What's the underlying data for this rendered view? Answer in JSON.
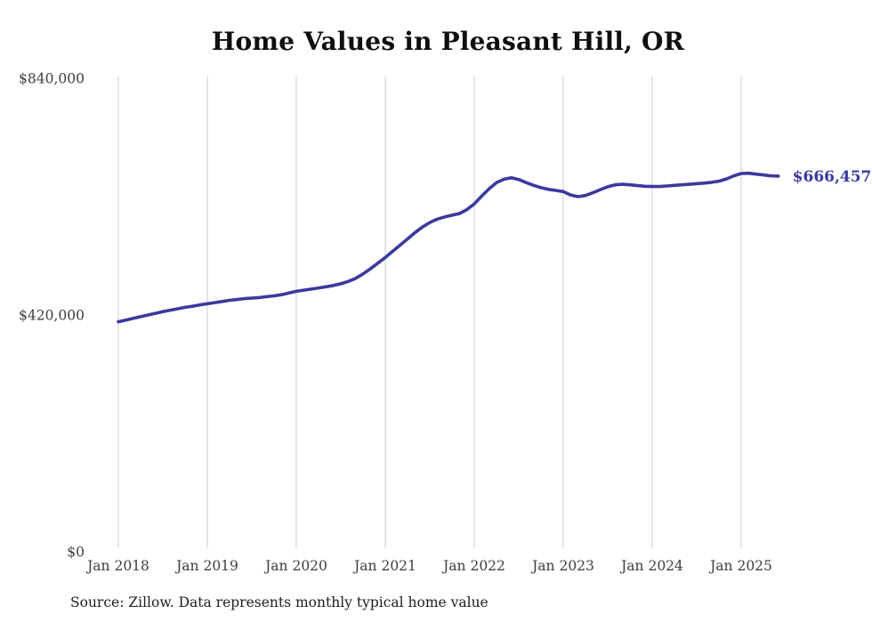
{
  "chart_data": {
    "type": "line",
    "title": "Home Values in Pleasant Hill, OR",
    "xlabel": "",
    "ylabel": "",
    "ylim": [
      0,
      840000
    ],
    "grid": "vertical-only",
    "legend": "none",
    "end_label": "$666,457",
    "end_value": 666457,
    "source_note": "Source: Zillow. Data represents monthly typical home value",
    "colors": {
      "line": "#3a3a9d",
      "end_label": "#3a3a9d",
      "gridline": "#cccccc",
      "tick_text": "#3d3d3d",
      "title_text": "#0f0f0f",
      "source_text": "#1d1d1d",
      "background": "#ffffff"
    },
    "y_ticks": [
      {
        "label": "$0",
        "value": 0
      },
      {
        "label": "$420,000",
        "value": 420000
      },
      {
        "label": "$840,000",
        "value": 840000
      }
    ],
    "x_ticks": [
      {
        "label": "Jan 2018",
        "month_index": 0
      },
      {
        "label": "Jan 2019",
        "month_index": 12
      },
      {
        "label": "Jan 2020",
        "month_index": 24
      },
      {
        "label": "Jan 2021",
        "month_index": 36
      },
      {
        "label": "Jan 2022",
        "month_index": 48
      },
      {
        "label": "Jan 2023",
        "month_index": 60
      },
      {
        "label": "Jan 2024",
        "month_index": 72
      },
      {
        "label": "Jan 2025",
        "month_index": 84
      }
    ],
    "series": [
      {
        "name": "Typical home value",
        "months": [
          "2018-01",
          "2018-02",
          "2018-03",
          "2018-04",
          "2018-05",
          "2018-06",
          "2018-07",
          "2018-08",
          "2018-09",
          "2018-10",
          "2018-11",
          "2018-12",
          "2019-01",
          "2019-02",
          "2019-03",
          "2019-04",
          "2019-05",
          "2019-06",
          "2019-07",
          "2019-08",
          "2019-09",
          "2019-10",
          "2019-11",
          "2019-12",
          "2020-01",
          "2020-02",
          "2020-03",
          "2020-04",
          "2020-05",
          "2020-06",
          "2020-07",
          "2020-08",
          "2020-09",
          "2020-10",
          "2020-11",
          "2020-12",
          "2021-01",
          "2021-02",
          "2021-03",
          "2021-04",
          "2021-05",
          "2021-06",
          "2021-07",
          "2021-08",
          "2021-09",
          "2021-10",
          "2021-11",
          "2021-12",
          "2022-01",
          "2022-02",
          "2022-03",
          "2022-04",
          "2022-05",
          "2022-06",
          "2022-07",
          "2022-08",
          "2022-09",
          "2022-10",
          "2022-11",
          "2022-12",
          "2023-01",
          "2023-02",
          "2023-03",
          "2023-04",
          "2023-05",
          "2023-06",
          "2023-07",
          "2023-08",
          "2023-09",
          "2023-10",
          "2023-11",
          "2023-12",
          "2024-01",
          "2024-02",
          "2024-03",
          "2024-04",
          "2024-05",
          "2024-06",
          "2024-07",
          "2024-08",
          "2024-09",
          "2024-10",
          "2024-11",
          "2024-12",
          "2025-01",
          "2025-02",
          "2025-03",
          "2025-04",
          "2025-05",
          "2025-06"
        ],
        "values": [
          408000,
          411000,
          414000,
          417000,
          420000,
          423000,
          426000,
          428500,
          431000,
          433500,
          435500,
          438000,
          440000,
          442000,
          444000,
          446000,
          447500,
          449000,
          450000,
          451000,
          452500,
          454000,
          456000,
          459000,
          462000,
          464000,
          466000,
          468000,
          470000,
          472500,
          475500,
          479500,
          485000,
          493000,
          502000,
          512000,
          522000,
          533000,
          544000,
          555000,
          566000,
          576000,
          584000,
          590000,
          594000,
          597000,
          600000,
          607000,
          617000,
          631000,
          644000,
          655000,
          661000,
          663500,
          660500,
          655000,
          650000,
          646000,
          643000,
          641000,
          639000,
          633000,
          630000,
          632000,
          637000,
          642500,
          647500,
          651000,
          652000,
          651000,
          649500,
          648500,
          648000,
          648000,
          649000,
          650000,
          651000,
          652000,
          653000,
          654000,
          655500,
          657500,
          661500,
          667000,
          671000,
          671500,
          670000,
          668500,
          667000,
          666457
        ]
      }
    ]
  }
}
